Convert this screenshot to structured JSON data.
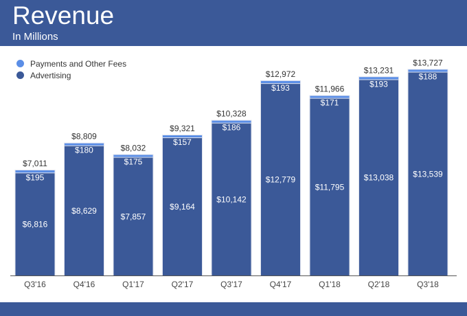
{
  "header": {
    "title": "Revenue",
    "subtitle": "In Millions"
  },
  "chart_data": {
    "type": "bar",
    "stacked": true,
    "title": "Revenue",
    "subtitle": "In Millions",
    "categories": [
      "Q3'16",
      "Q4'16",
      "Q1'17",
      "Q2'17",
      "Q3'17",
      "Q4'17",
      "Q1'18",
      "Q2'18",
      "Q3'18"
    ],
    "series": [
      {
        "name": "Advertising",
        "color": "#3b5998",
        "values": [
          6816,
          8629,
          7857,
          9164,
          10142,
          12779,
          11795,
          13038,
          13539
        ],
        "labels": [
          "$6,816",
          "$8,629",
          "$7,857",
          "$9,164",
          "$10,142",
          "$12,779",
          "$11,795",
          "$13,038",
          "$13,539"
        ]
      },
      {
        "name": "Payments and Other Fees",
        "color": "#5b8ee6",
        "values": [
          195,
          180,
          175,
          157,
          186,
          193,
          171,
          193,
          188
        ],
        "labels": [
          "$195",
          "$180",
          "$175",
          "$157",
          "$186",
          "$193",
          "$171",
          "$193",
          "$188"
        ]
      }
    ],
    "totals": [
      7011,
      8809,
      8032,
      9321,
      10328,
      12972,
      11966,
      13231,
      13727
    ],
    "total_labels": [
      "$7,011",
      "$8,809",
      "$8,032",
      "$9,321",
      "$10,328",
      "$12,972",
      "$11,966",
      "$13,231",
      "$13,727"
    ],
    "legend": "top-left",
    "ylim": [
      0,
      14000
    ],
    "grid": false
  }
}
